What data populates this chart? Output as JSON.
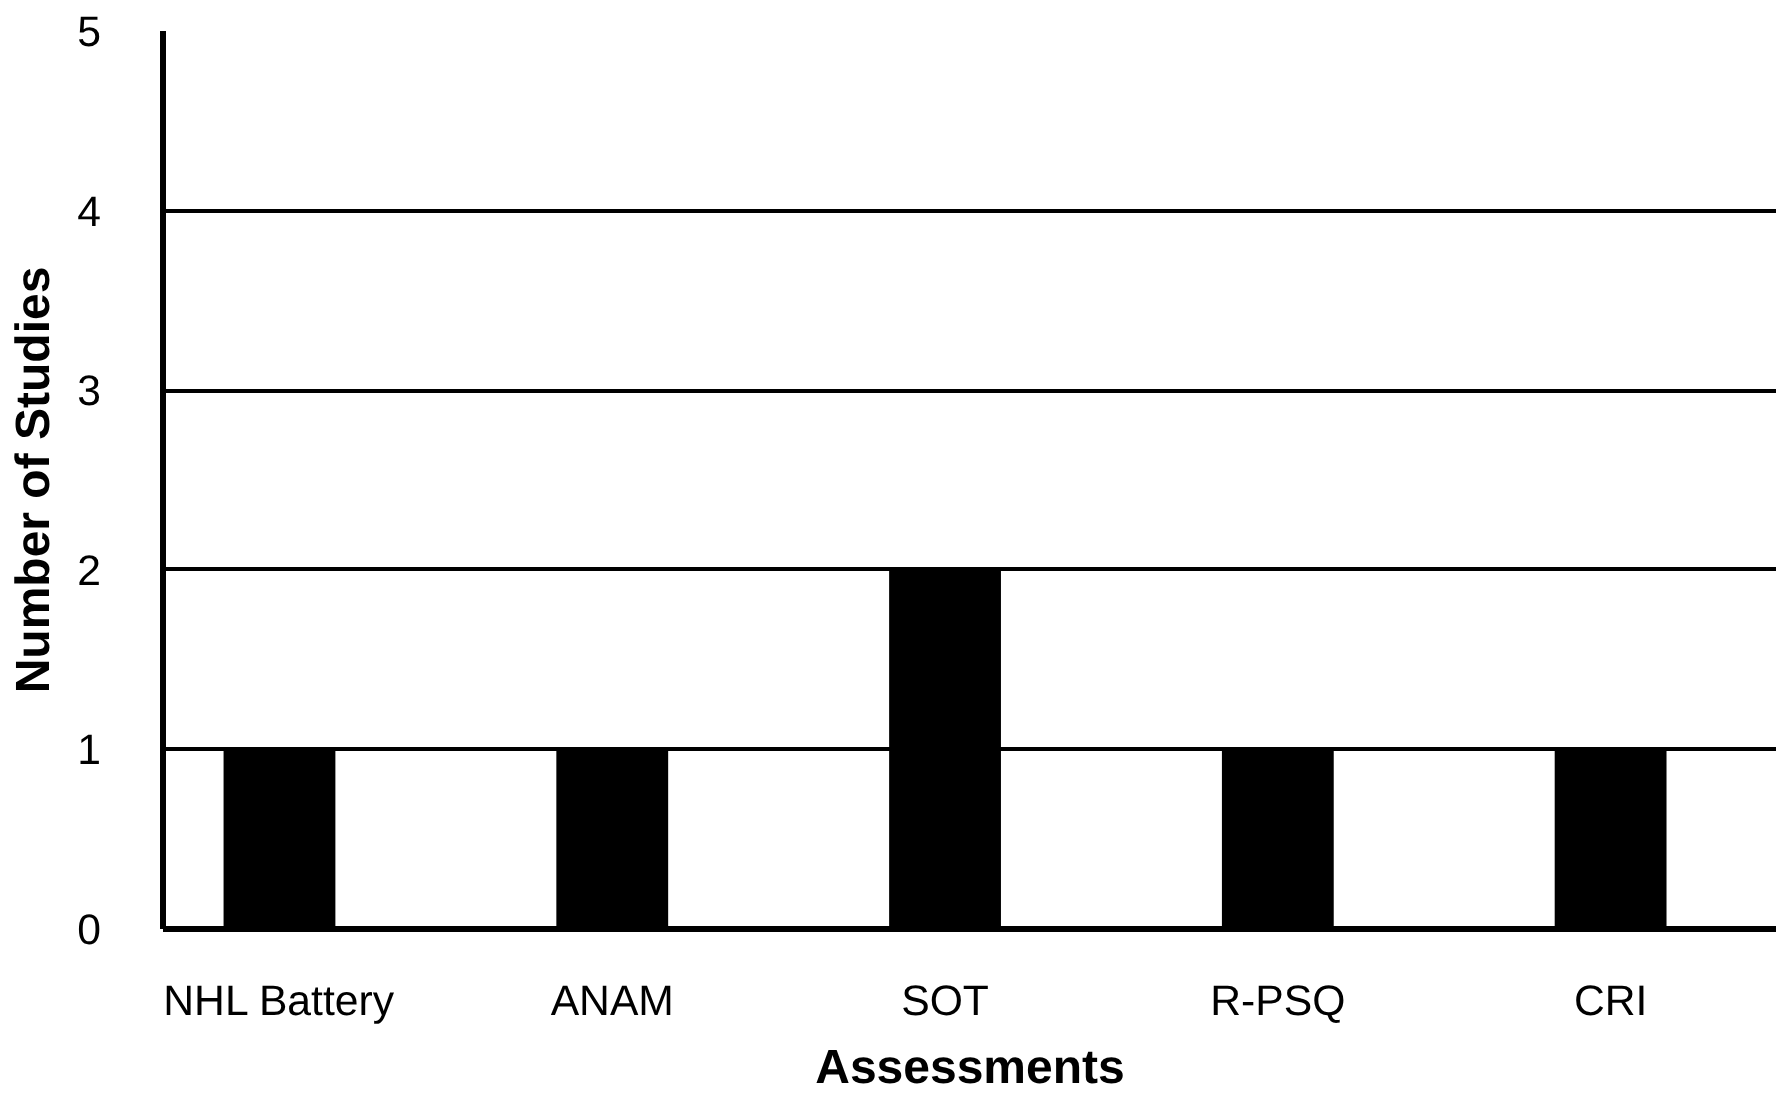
{
  "chart_data": {
    "type": "bar",
    "xlabel": "Assessments",
    "ylabel": "Number of Studies",
    "categories": [
      "NHL Battery",
      "ANAM",
      "SOT",
      "R-PSQ",
      "CRI"
    ],
    "values": [
      1,
      1,
      2,
      1,
      1
    ],
    "color": "#000000",
    "ylim": [
      0,
      5
    ],
    "yticks": [
      0,
      1,
      2,
      3,
      4,
      5
    ],
    "grid": "y"
  }
}
